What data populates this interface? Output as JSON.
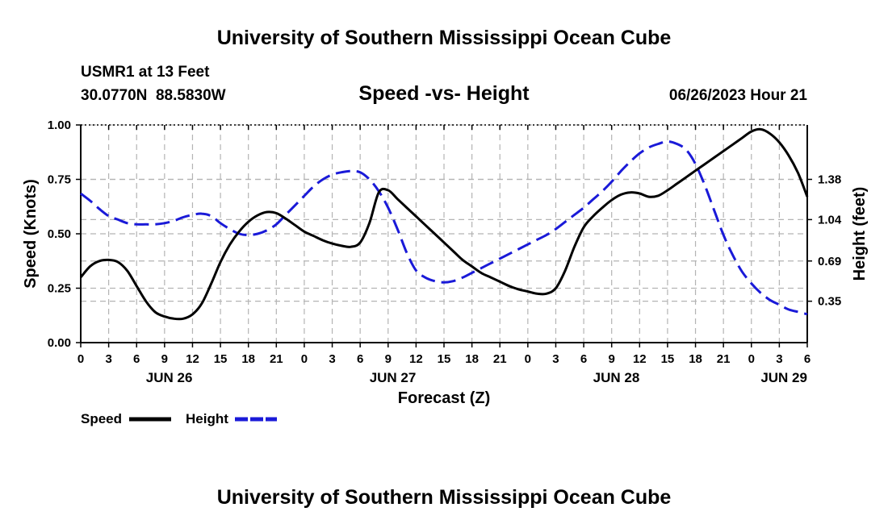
{
  "header": {
    "title": "University of Southern Mississippi Ocean Cube",
    "station": "USMR1 at 13 Feet",
    "coords": "30.0770N  88.5830W",
    "date": "06/26/2023 Hour 21",
    "footer_title": "University of Southern Mississippi Ocean Cube"
  },
  "chart_data": {
    "type": "line",
    "title": "Speed -vs- Height",
    "xlabel": "Forecast (Z)",
    "ylabel": "Speed (Knots)",
    "y2label": "Height (feet)",
    "xlim": [
      0,
      78
    ],
    "ylim": [
      0,
      1.0
    ],
    "y2lim": [
      0,
      1.84
    ],
    "x_ticks": [
      0,
      3,
      6,
      9,
      12,
      15,
      18,
      21,
      24,
      27,
      30,
      33,
      36,
      39,
      42,
      45,
      48,
      51,
      54,
      57,
      60,
      63,
      66,
      69,
      72,
      75,
      78
    ],
    "x_tick_labels": [
      "0",
      "3",
      "6",
      "9",
      "12",
      "15",
      "18",
      "21",
      "0",
      "3",
      "6",
      "9",
      "12",
      "15",
      "18",
      "21",
      "0",
      "3",
      "6",
      "9",
      "12",
      "15",
      "18",
      "21",
      "0",
      "3",
      "6"
    ],
    "y_ticks": [
      0.0,
      0.25,
      0.5,
      0.75,
      1.0
    ],
    "y_tick_labels": [
      "0.00",
      "0.25",
      "0.50",
      "0.75",
      "1.00"
    ],
    "y2_ticks": [
      0.35,
      0.69,
      1.04,
      1.38
    ],
    "y2_tick_labels": [
      "0.35",
      "0.69",
      "1.04",
      "1.38"
    ],
    "day_labels": [
      {
        "x": 9.5,
        "label": "JUN 26"
      },
      {
        "x": 33.5,
        "label": "JUN 27"
      },
      {
        "x": 57.5,
        "label": "JUN 28"
      },
      {
        "x": 75.5,
        "label": "JUN 29"
      }
    ],
    "grid": true,
    "series": [
      {
        "name": "Speed",
        "axis": "left",
        "color": "#000000",
        "dash": "solid",
        "x": [
          0,
          1,
          2,
          3,
          4,
          5,
          6,
          7,
          8,
          9,
          10,
          11,
          12,
          13,
          14,
          15,
          16,
          17,
          18,
          19,
          20,
          21,
          22,
          23,
          24,
          25,
          26,
          27,
          28,
          29,
          30,
          31,
          32,
          33,
          34,
          35,
          36,
          37,
          38,
          39,
          40,
          41,
          42,
          43,
          44,
          45,
          46,
          47,
          48,
          49,
          50,
          51,
          52,
          53,
          54,
          55,
          56,
          57,
          58,
          59,
          60,
          61,
          62,
          63,
          64,
          65,
          66,
          67,
          68,
          69,
          70,
          71,
          72,
          73,
          74,
          75,
          76,
          77,
          78
        ],
        "values": [
          0.3,
          0.35,
          0.375,
          0.38,
          0.37,
          0.33,
          0.26,
          0.19,
          0.14,
          0.12,
          0.11,
          0.11,
          0.13,
          0.18,
          0.27,
          0.37,
          0.45,
          0.51,
          0.555,
          0.585,
          0.6,
          0.595,
          0.57,
          0.54,
          0.51,
          0.49,
          0.47,
          0.455,
          0.445,
          0.44,
          0.46,
          0.55,
          0.69,
          0.7,
          0.66,
          0.62,
          0.58,
          0.54,
          0.5,
          0.46,
          0.42,
          0.38,
          0.35,
          0.32,
          0.3,
          0.28,
          0.26,
          0.245,
          0.235,
          0.225,
          0.225,
          0.25,
          0.33,
          0.44,
          0.53,
          0.58,
          0.62,
          0.655,
          0.68,
          0.69,
          0.685,
          0.67,
          0.675,
          0.7,
          0.73,
          0.76,
          0.79,
          0.82,
          0.85,
          0.88,
          0.91,
          0.94,
          0.97,
          0.98,
          0.96,
          0.92,
          0.86,
          0.78,
          0.67
        ]
      },
      {
        "name": "Height",
        "axis": "right",
        "color": "#1a1ad8",
        "dash": "dashed",
        "x": [
          0,
          1,
          2,
          3,
          4,
          5,
          6,
          7,
          8,
          9,
          10,
          11,
          12,
          13,
          14,
          15,
          16,
          17,
          18,
          19,
          20,
          21,
          22,
          23,
          24,
          25,
          26,
          27,
          28,
          29,
          30,
          31,
          32,
          33,
          34,
          35,
          36,
          37,
          38,
          39,
          40,
          41,
          42,
          43,
          44,
          45,
          46,
          47,
          48,
          49,
          50,
          51,
          52,
          53,
          54,
          55,
          56,
          57,
          58,
          59,
          60,
          61,
          62,
          63,
          64,
          65,
          66,
          67,
          68,
          69,
          70,
          71,
          72,
          73,
          74,
          75,
          76,
          77,
          78
        ],
        "values": [
          1.26,
          1.2,
          1.13,
          1.07,
          1.04,
          1.01,
          1.0,
          1.0,
          1.0,
          1.01,
          1.03,
          1.06,
          1.08,
          1.09,
          1.07,
          1.01,
          0.96,
          0.92,
          0.91,
          0.92,
          0.95,
          1.0,
          1.08,
          1.16,
          1.24,
          1.32,
          1.38,
          1.42,
          1.44,
          1.45,
          1.44,
          1.38,
          1.28,
          1.14,
          0.96,
          0.76,
          0.61,
          0.55,
          0.52,
          0.51,
          0.52,
          0.55,
          0.59,
          0.63,
          0.67,
          0.71,
          0.75,
          0.79,
          0.83,
          0.87,
          0.91,
          0.96,
          1.02,
          1.08,
          1.14,
          1.21,
          1.28,
          1.36,
          1.45,
          1.53,
          1.6,
          1.65,
          1.68,
          1.7,
          1.68,
          1.63,
          1.51,
          1.33,
          1.12,
          0.91,
          0.74,
          0.6,
          0.5,
          0.42,
          0.36,
          0.32,
          0.28,
          0.26,
          0.24
        ]
      }
    ],
    "legend": [
      {
        "label": "Speed",
        "color": "#000000",
        "dash": "solid"
      },
      {
        "label": "Height",
        "color": "#1a1ad8",
        "dash": "dashed"
      }
    ]
  }
}
